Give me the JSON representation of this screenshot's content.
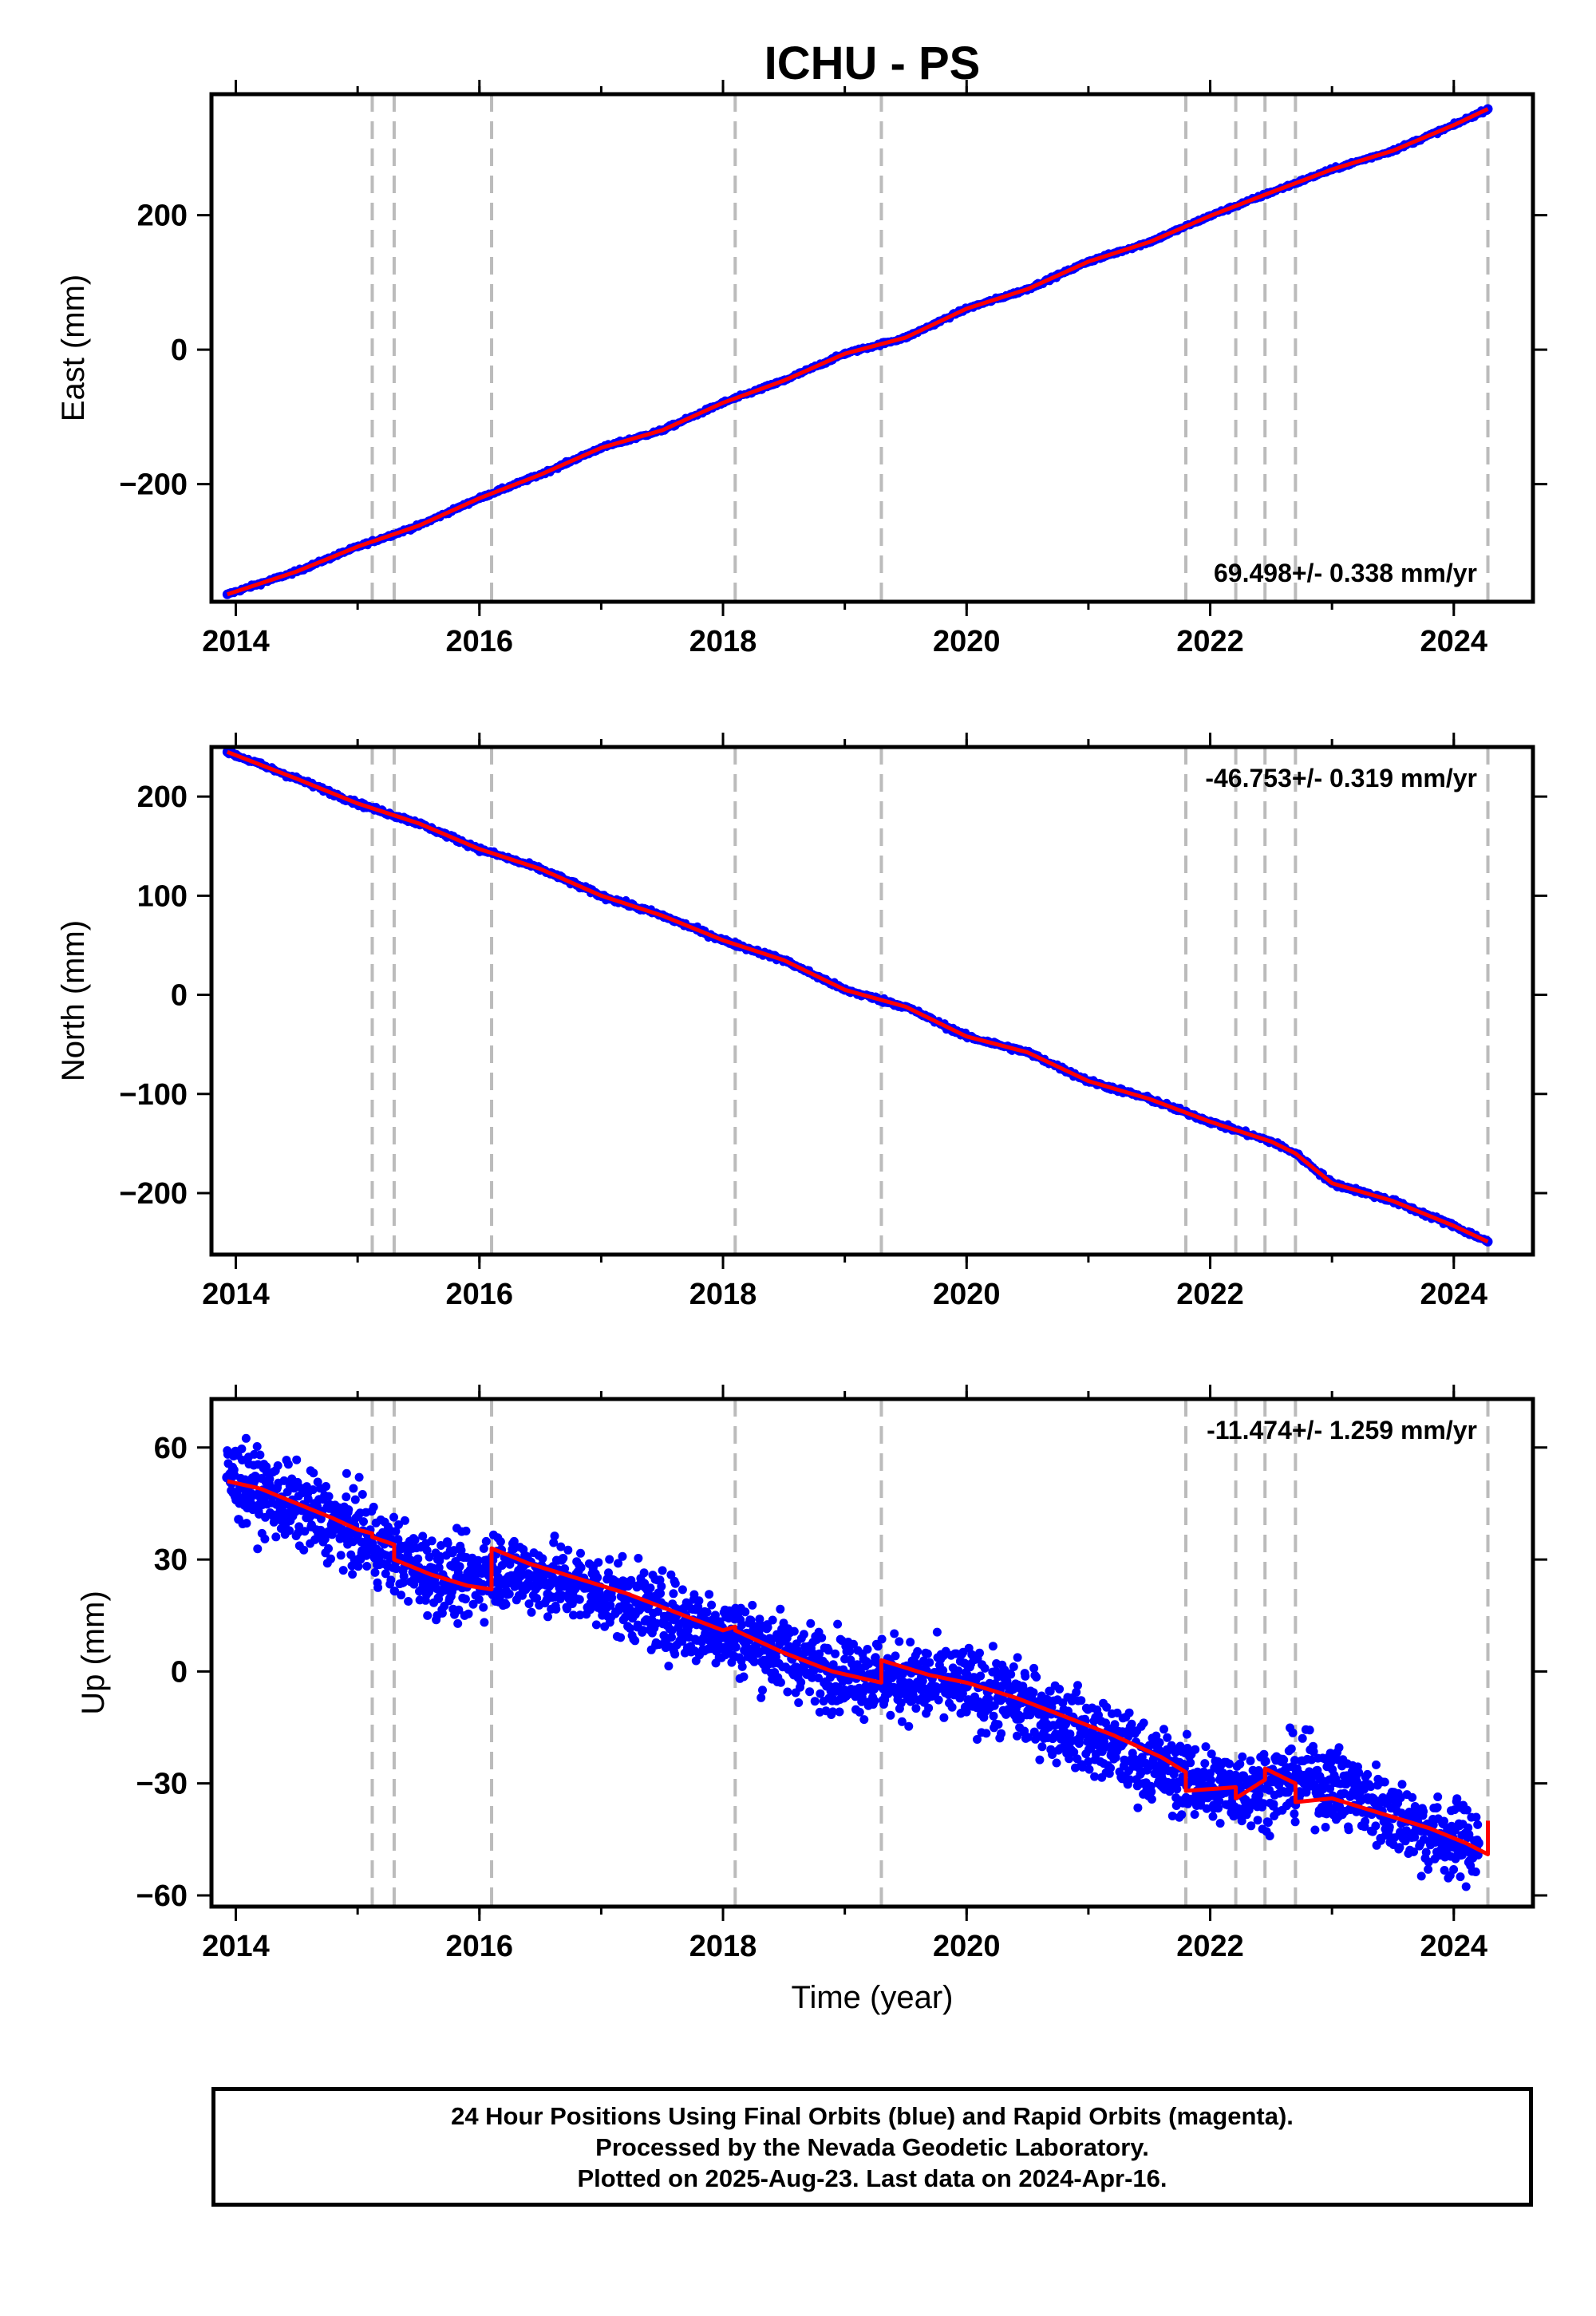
{
  "title": "ICHU - PS",
  "colors": {
    "final_points": "#0000ff",
    "model_line": "#ff0000",
    "event_lines": "#bbbbbb",
    "axes": "#000000"
  },
  "events": [
    2015.12,
    2015.3,
    2016.1,
    2018.1,
    2019.3,
    2021.8,
    2022.21,
    2022.45,
    2022.7,
    2024.28
  ],
  "chart_data": [
    {
      "type": "scatter",
      "component": "east",
      "ylabel": "East (mm)",
      "xlabel": "",
      "xlim": [
        2013.8,
        2024.65
      ],
      "ylim": [
        -375,
        380
      ],
      "xticks": [
        2014,
        2016,
        2018,
        2020,
        2022,
        2024
      ],
      "yticks": [
        -200,
        0,
        200
      ],
      "ytick_labels": [
        "−200",
        "0",
        "200"
      ],
      "rate_label": "69.498+/- 0.338 mm/yr",
      "rate_position": "bottom-right",
      "series": [
        {
          "name": "",
          "kind": "points",
          "x": [
            2013.93,
            2014.5,
            2015.0,
            2015.5,
            2016.0,
            2016.5,
            2017.0,
            2017.5,
            2018.0,
            2018.5,
            2019.0,
            2019.5,
            2020.0,
            2020.5,
            2021.0,
            2021.5,
            2022.0,
            2022.5,
            2023.0,
            2023.5,
            2024.0,
            2024.28
          ],
          "y": [
            -364,
            -330,
            -293,
            -262,
            -221,
            -186,
            -146,
            -120,
            -79,
            -46,
            -6,
            18,
            61,
            90,
            131,
            160,
            199,
            234,
            268,
            296,
            334,
            358
          ]
        },
        {
          "name": "",
          "kind": "line",
          "x": [
            2013.93,
            2014.5,
            2015.0,
            2015.5,
            2016.0,
            2016.5,
            2017.0,
            2017.5,
            2018.0,
            2018.5,
            2019.0,
            2019.5,
            2020.0,
            2020.5,
            2021.0,
            2021.5,
            2022.0,
            2022.5,
            2023.0,
            2023.5,
            2024.0,
            2024.28
          ],
          "y": [
            -364,
            -330,
            -293,
            -262,
            -221,
            -186,
            -146,
            -120,
            -79,
            -46,
            -6,
            18,
            61,
            90,
            131,
            160,
            199,
            234,
            268,
            296,
            334,
            358
          ]
        }
      ]
    },
    {
      "type": "scatter",
      "component": "north",
      "ylabel": "North (mm)",
      "xlabel": "",
      "xlim": [
        2013.8,
        2024.65
      ],
      "ylim": [
        -262,
        250
      ],
      "xticks": [
        2014,
        2016,
        2018,
        2020,
        2022,
        2024
      ],
      "yticks": [
        -200,
        -100,
        0,
        100,
        200
      ],
      "ytick_labels": [
        "−200",
        "−100",
        "0",
        "100",
        "200"
      ],
      "rate_label": "-46.753+/- 0.319 mm/yr",
      "rate_position": "top-right",
      "series": [
        {
          "name": "",
          "kind": "points",
          "x": [
            2013.93,
            2014.5,
            2015.0,
            2015.5,
            2016.0,
            2016.5,
            2017.0,
            2017.5,
            2018.0,
            2018.5,
            2019.0,
            2019.5,
            2020.0,
            2020.5,
            2021.0,
            2021.5,
            2022.0,
            2022.5,
            2022.7,
            2023.0,
            2023.5,
            2024.0,
            2024.28
          ],
          "y": [
            245,
            218,
            193,
            173,
            147,
            127,
            100,
            80,
            55,
            35,
            5,
            -12,
            -42,
            -58,
            -87,
            -105,
            -128,
            -148,
            -160,
            -190,
            -208,
            -233,
            -249
          ]
        },
        {
          "name": "",
          "kind": "line",
          "x": [
            2013.93,
            2014.5,
            2015.0,
            2015.5,
            2016.0,
            2016.5,
            2017.0,
            2017.5,
            2018.0,
            2018.5,
            2019.0,
            2019.5,
            2020.0,
            2020.5,
            2021.0,
            2021.5,
            2022.0,
            2022.5,
            2022.7,
            2023.0,
            2023.5,
            2024.0,
            2024.28
          ],
          "y": [
            245,
            218,
            193,
            173,
            147,
            127,
            100,
            80,
            55,
            35,
            5,
            -12,
            -42,
            -58,
            -87,
            -105,
            -128,
            -148,
            -160,
            -190,
            -208,
            -233,
            -249
          ]
        }
      ]
    },
    {
      "type": "scatter",
      "component": "up",
      "ylabel": "Up (mm)",
      "xlabel": "Time (year)",
      "xlim": [
        2013.8,
        2024.65
      ],
      "ylim": [
        -63,
        73
      ],
      "xticks": [
        2014,
        2016,
        2018,
        2020,
        2022,
        2024
      ],
      "yticks": [
        -60,
        -30,
        0,
        30,
        60
      ],
      "ytick_labels": [
        "−60",
        "−30",
        "0",
        "30",
        "60"
      ],
      "rate_label": "-11.474+/- 1.259 mm/yr",
      "rate_position": "top-right",
      "series": [
        {
          "name": "",
          "kind": "points",
          "x": [
            2013.93,
            2014.2,
            2014.5,
            2014.8,
            2015.0,
            2015.3,
            2015.6,
            2015.9,
            2016.1,
            2016.4,
            2016.8,
            2017.2,
            2017.6,
            2018.0,
            2018.4,
            2018.8,
            2019.2,
            2019.6,
            2020.0,
            2020.4,
            2020.8,
            2021.2,
            2021.6,
            2022.0,
            2022.4,
            2022.8,
            2023.2,
            2023.6,
            2023.9,
            2024.2
          ],
          "y": [
            52,
            48,
            44,
            40,
            37,
            31,
            26,
            24,
            28,
            26,
            23,
            19,
            14,
            11,
            6,
            1,
            -1,
            -3,
            -4,
            -8,
            -14,
            -20,
            -26,
            -31,
            -31,
            -28,
            -33,
            -40,
            -45,
            -46
          ]
        },
        {
          "name": "",
          "kind": "line",
          "x": [
            2013.93,
            2014.2,
            2014.5,
            2014.8,
            2015.0,
            2015.12,
            2015.12,
            2015.3,
            2015.3,
            2015.6,
            2015.9,
            2016.1,
            2016.1,
            2016.4,
            2016.8,
            2017.2,
            2017.6,
            2018.0,
            2018.1,
            2018.1,
            2018.5,
            2018.9,
            2019.3,
            2019.3,
            2019.7,
            2020.0,
            2020.4,
            2020.8,
            2021.2,
            2021.6,
            2021.8,
            2021.8,
            2022.21,
            2022.21,
            2022.45,
            2022.45,
            2022.7,
            2022.7,
            2023.0,
            2023.4,
            2023.8,
            2024.1,
            2024.28,
            2024.28
          ],
          "y": [
            51,
            49,
            45,
            41,
            38,
            37,
            36,
            34,
            30,
            26,
            23,
            22,
            33,
            29,
            25,
            21,
            16,
            11,
            12,
            11,
            5,
            0,
            -3,
            3,
            -1,
            -3,
            -7,
            -12,
            -17,
            -23,
            -27,
            -32,
            -31,
            -34,
            -29,
            -26,
            -30,
            -35,
            -34,
            -38,
            -42,
            -46,
            -49,
            -40
          ]
        }
      ]
    }
  ],
  "footer": {
    "line1": "24 Hour Positions Using Final Orbits (blue) and Rapid Orbits (magenta).",
    "line2": "Processed by the Nevada Geodetic Laboratory.",
    "line3": "Plotted on 2025-Aug-23. Last data on 2024-Apr-16."
  }
}
